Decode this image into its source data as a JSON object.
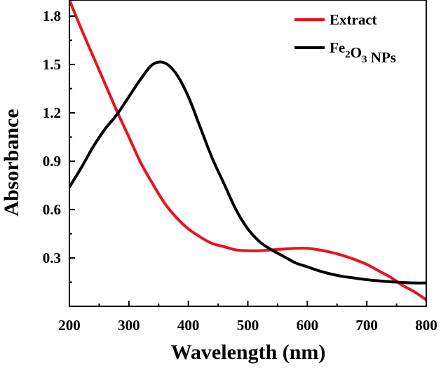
{
  "chart_data": {
    "type": "line",
    "title": "",
    "xlabel": "Wavelength (nm)",
    "ylabel": "Absorbance",
    "xlim": [
      200,
      800
    ],
    "ylim": [
      0.0,
      1.9
    ],
    "xticks": [
      200,
      300,
      400,
      500,
      600,
      700,
      800
    ],
    "yticks": [
      0.3,
      0.6,
      0.9,
      1.2,
      1.5,
      1.8
    ],
    "xtick_labels": [
      "200",
      "300",
      "400",
      "500",
      "600",
      "700",
      "800"
    ],
    "ytick_labels": [
      "0.3",
      "0.6",
      "0.9",
      "1.2",
      "1.5",
      "1.8"
    ],
    "legend_position": "top-right",
    "series": [
      {
        "name": "Extract",
        "legend_parts": [
          "Extract"
        ],
        "color": "#e8141a",
        "x": [
          200,
          220,
          240,
          260,
          280,
          300,
          320,
          340,
          360,
          380,
          400,
          420,
          440,
          460,
          480,
          500,
          520,
          540,
          560,
          580,
          600,
          620,
          640,
          660,
          680,
          700,
          720,
          740,
          760,
          780,
          800
        ],
        "y": [
          1.9,
          1.72,
          1.55,
          1.38,
          1.21,
          1.05,
          0.89,
          0.76,
          0.64,
          0.55,
          0.48,
          0.43,
          0.39,
          0.37,
          0.35,
          0.345,
          0.345,
          0.35,
          0.355,
          0.36,
          0.36,
          0.35,
          0.335,
          0.315,
          0.29,
          0.26,
          0.22,
          0.18,
          0.13,
          0.09,
          0.04
        ]
      },
      {
        "name": "Fe2O3 NPs",
        "legend_parts": [
          "Fe",
          "2",
          "O",
          "3",
          " NPs"
        ],
        "color": "#000000",
        "x": [
          200,
          220,
          240,
          260,
          280,
          300,
          320,
          340,
          360,
          380,
          400,
          420,
          440,
          460,
          480,
          500,
          520,
          540,
          560,
          580,
          600,
          620,
          640,
          660,
          680,
          700,
          720,
          740,
          760,
          780,
          800
        ],
        "y": [
          0.74,
          0.86,
          0.99,
          1.1,
          1.19,
          1.3,
          1.41,
          1.5,
          1.51,
          1.44,
          1.3,
          1.11,
          0.92,
          0.76,
          0.6,
          0.48,
          0.4,
          0.35,
          0.31,
          0.27,
          0.245,
          0.22,
          0.2,
          0.185,
          0.175,
          0.165,
          0.158,
          0.152,
          0.148,
          0.145,
          0.145
        ]
      }
    ]
  }
}
